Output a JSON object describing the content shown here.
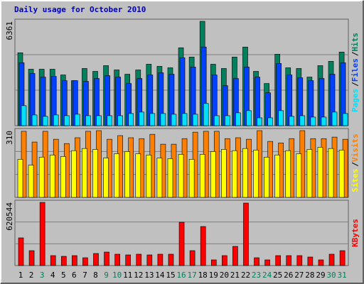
{
  "chart_data": {
    "type": "bar",
    "title": "Daily usage for October 2010",
    "legend_separator": "/",
    "categories": [
      "1",
      "2",
      "3",
      "4",
      "5",
      "6",
      "7",
      "8",
      "9",
      "10",
      "11",
      "12",
      "13",
      "14",
      "15",
      "16",
      "17",
      "18",
      "19",
      "20",
      "21",
      "22",
      "23",
      "24",
      "25",
      "26",
      "27",
      "28",
      "29",
      "30",
      "31"
    ],
    "category_colors": [
      "#000000",
      "#000000",
      "#00805c",
      "#000000",
      "#000000",
      "#000000",
      "#000000",
      "#000000",
      "#00805c",
      "#00805c",
      "#000000",
      "#000000",
      "#000000",
      "#000000",
      "#000000",
      "#00805c",
      "#00805c",
      "#000000",
      "#000000",
      "#000000",
      "#000000",
      "#000000",
      "#00805c",
      "#00805c",
      "#000000",
      "#000000",
      "#000000",
      "#000000",
      "#000000",
      "#00805c",
      "#00805c"
    ],
    "panels": [
      {
        "ylim": [
          0,
          6361
        ],
        "yticks": [
          6361
        ],
        "series": [
          {
            "name": "Hits",
            "color": "#00805c",
            "values": [
              4444,
              3442,
              3442,
              3442,
              3093,
              2745,
              3486,
              3311,
              3660,
              3398,
              3137,
              3398,
              3747,
              3616,
              3529,
              4749,
              4183,
              6361,
              3747,
              3486,
              4183,
              4793,
              3311,
              2571,
              4357,
              3529,
              3486,
              2963,
              3660,
              3921,
              4488
            ]
          },
          {
            "name": "Files",
            "color": "#0040ff",
            "values": [
              3834,
              3181,
              2963,
              3006,
              2745,
              2745,
              2701,
              2876,
              3050,
              2963,
              2571,
              2876,
              3093,
              3224,
              3137,
              4139,
              3573,
              4793,
              3093,
              2440,
              2876,
              3573,
              2963,
              2004,
              3791,
              3093,
              2919,
              2745,
              2876,
              3137,
              3834
            ]
          },
          {
            "name": "Pages",
            "color": "#00e0ff",
            "values": [
              1220,
              654,
              566,
              654,
              610,
              697,
              610,
              610,
              610,
              610,
              741,
              828,
              741,
              741,
              697,
              741,
              697,
              1351,
              610,
              610,
              784,
              915,
              479,
              479,
              915,
              566,
              610,
              523,
              523,
              828,
              741
            ]
          }
        ]
      },
      {
        "ylim": [
          0,
          310
        ],
        "yticks": [
          310
        ],
        "series": [
          {
            "name": "Visits",
            "color": "#ff8000",
            "values": [
              307,
              257,
              307,
              270,
              250,
              277,
              307,
              310,
              270,
              287,
              277,
              273,
              293,
              247,
              247,
              273,
              303,
              307,
              307,
              273,
              277,
              270,
              310,
              260,
              253,
              273,
              310,
              273,
              273,
              280,
              270
            ]
          },
          {
            "name": "Sites",
            "color": "#ffff00",
            "values": [
              177,
              150,
              187,
              197,
              190,
              217,
              227,
              223,
              183,
              203,
              213,
              203,
              197,
              183,
              180,
              200,
              177,
              200,
              213,
              223,
              217,
              227,
              220,
              187,
              197,
              217,
              203,
              223,
              233,
              227,
              220
            ]
          }
        ]
      },
      {
        "ylim": [
          0,
          620544
        ],
        "yticks": [
          620544
        ],
        "series": [
          {
            "name": "KBytes",
            "color": "#ff0000",
            "values": [
              271908,
              146412,
              620544,
              97608,
              90636,
              97608,
              76692,
              118524,
              132468,
              111552,
              104580,
              111552,
              104580,
              111552,
              111552,
              425292,
              146412,
              383460,
              55776,
              97608,
              188244,
              613536,
              76692,
              55776,
              97608,
              97608,
              97608,
              83664,
              55776,
              111552,
              146412
            ]
          }
        ]
      }
    ]
  }
}
